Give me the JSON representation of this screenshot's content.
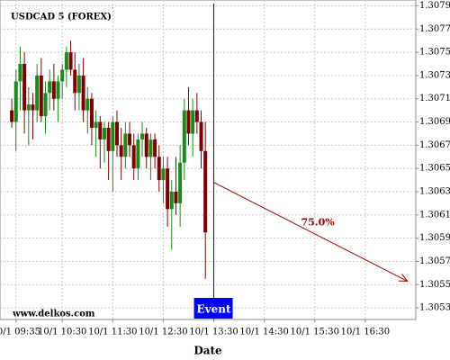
{
  "chart_data": {
    "type": "candlestick",
    "title": "USDCAD 5 (FOREX)",
    "watermark": "www.delkos.com",
    "x_label": "Date",
    "x": [
      "10/1 09:30",
      "10/1 09:35",
      "10/1 09:40",
      "10/1 09:45",
      "10/1 09:50",
      "10/1 09:55",
      "10/1 10:00",
      "10/1 10:05",
      "10/1 10:10",
      "10/1 10:15",
      "10/1 10:20",
      "10/1 10:25",
      "10/1 10:30",
      "10/1 10:35",
      "10/1 10:40",
      "10/1 10:45",
      "10/1 10:50",
      "10/1 10:55",
      "10/1 11:00",
      "10/1 11:05",
      "10/1 11:10",
      "10/1 11:15",
      "10/1 11:20",
      "10/1 11:25",
      "10/1 11:30",
      "10/1 11:35",
      "10/1 11:40",
      "10/1 11:45",
      "10/1 11:50",
      "10/1 11:55",
      "10/1 12:00",
      "10/1 12:05",
      "10/1 12:10",
      "10/1 12:15",
      "10/1 12:20",
      "10/1 12:25",
      "10/1 12:30",
      "10/1 12:35",
      "10/1 12:40",
      "10/1 12:45",
      "10/1 12:50",
      "10/1 12:55",
      "10/1 13:00",
      "10/1 13:05",
      "10/1 13:10",
      "10/1 13:15",
      "10/1 13:20"
    ],
    "open": [
      1.307,
      1.3069,
      1.30725,
      1.3074,
      1.307,
      1.30705,
      1.307,
      1.3073,
      1.30695,
      1.30715,
      1.30725,
      1.3071,
      1.30725,
      1.30735,
      1.3075,
      1.30735,
      1.30715,
      1.3073,
      1.307,
      1.3071,
      1.30685,
      1.3069,
      1.30675,
      1.30685,
      1.30665,
      1.3069,
      1.3067,
      1.3066,
      1.3068,
      1.3067,
      1.3065,
      1.30675,
      1.3068,
      1.3066,
      1.30675,
      1.3066,
      1.3064,
      1.3065,
      1.30615,
      1.3063,
      1.3062,
      1.30655,
      1.307,
      1.3068,
      1.307,
      1.3069,
      1.30665
    ],
    "high": [
      1.3071,
      1.30735,
      1.30755,
      1.3075,
      1.3072,
      1.30715,
      1.3074,
      1.30745,
      1.30725,
      1.30735,
      1.3074,
      1.3073,
      1.3074,
      1.30755,
      1.3076,
      1.3075,
      1.3074,
      1.30745,
      1.3072,
      1.30715,
      1.307,
      1.30695,
      1.3069,
      1.3069,
      1.30695,
      1.307,
      1.30685,
      1.3069,
      1.3069,
      1.3068,
      1.3068,
      1.3069,
      1.30685,
      1.3068,
      1.3068,
      1.3067,
      1.3066,
      1.3066,
      1.3064,
      1.3066,
      1.3067,
      1.3071,
      1.3072,
      1.3071,
      1.30715,
      1.307,
      1.3069
    ],
    "low": [
      1.30685,
      1.30665,
      1.307,
      1.3068,
      1.3067,
      1.30675,
      1.3069,
      1.3069,
      1.3068,
      1.307,
      1.307,
      1.3069,
      1.3071,
      1.3072,
      1.3073,
      1.307,
      1.307,
      1.3069,
      1.3068,
      1.3067,
      1.3066,
      1.3065,
      1.30655,
      1.3064,
      1.3063,
      1.3066,
      1.3064,
      1.3065,
      1.3066,
      1.3064,
      1.3064,
      1.3066,
      1.3065,
      1.3064,
      1.3065,
      1.3063,
      1.3062,
      1.306,
      1.3058,
      1.3061,
      1.306,
      1.3064,
      1.3067,
      1.3066,
      1.3068,
      1.3065,
      1.30555
    ],
    "close": [
      1.3069,
      1.30725,
      1.3074,
      1.307,
      1.30705,
      1.307,
      1.3073,
      1.30695,
      1.30715,
      1.30725,
      1.3071,
      1.30725,
      1.30735,
      1.3075,
      1.30735,
      1.30715,
      1.3073,
      1.307,
      1.3071,
      1.30685,
      1.3069,
      1.30675,
      1.30685,
      1.30665,
      1.3069,
      1.3067,
      1.3066,
      1.3068,
      1.3067,
      1.3065,
      1.30675,
      1.3068,
      1.3066,
      1.30675,
      1.3066,
      1.3064,
      1.3065,
      1.30615,
      1.3063,
      1.3062,
      1.30655,
      1.307,
      1.3068,
      1.307,
      1.3069,
      1.30665,
      1.30595
    ],
    "up_color": "#1a8a1a",
    "down_color": "#800000",
    "xlim": [
      "10/1 09:16",
      "10/1 17:30"
    ],
    "xticks": [
      "10/1 09:35",
      "10/1 10:30",
      "10/1 11:30",
      "10/1 12:30",
      "10/1 13:30",
      "10/1 14:30",
      "10/1 15:30",
      "10/1 16:30"
    ],
    "ylim": [
      1.3052,
      1.30795
    ],
    "yticks": [
      1.3053,
      1.3055,
      1.3057,
      1.3059,
      1.3061,
      1.3063,
      1.3065,
      1.3067,
      1.3069,
      1.3071,
      1.3073,
      1.3075,
      1.3077,
      1.3079
    ],
    "grid": true,
    "event": {
      "x": "10/1 13:30",
      "label": "Event",
      "color": "#0000ff"
    },
    "projection": {
      "x": [
        "10/1 13:30",
        "10/1 17:20"
      ],
      "y": [
        1.30638,
        1.30553
      ],
      "label": "75.0%",
      "color": "#a00000"
    }
  }
}
